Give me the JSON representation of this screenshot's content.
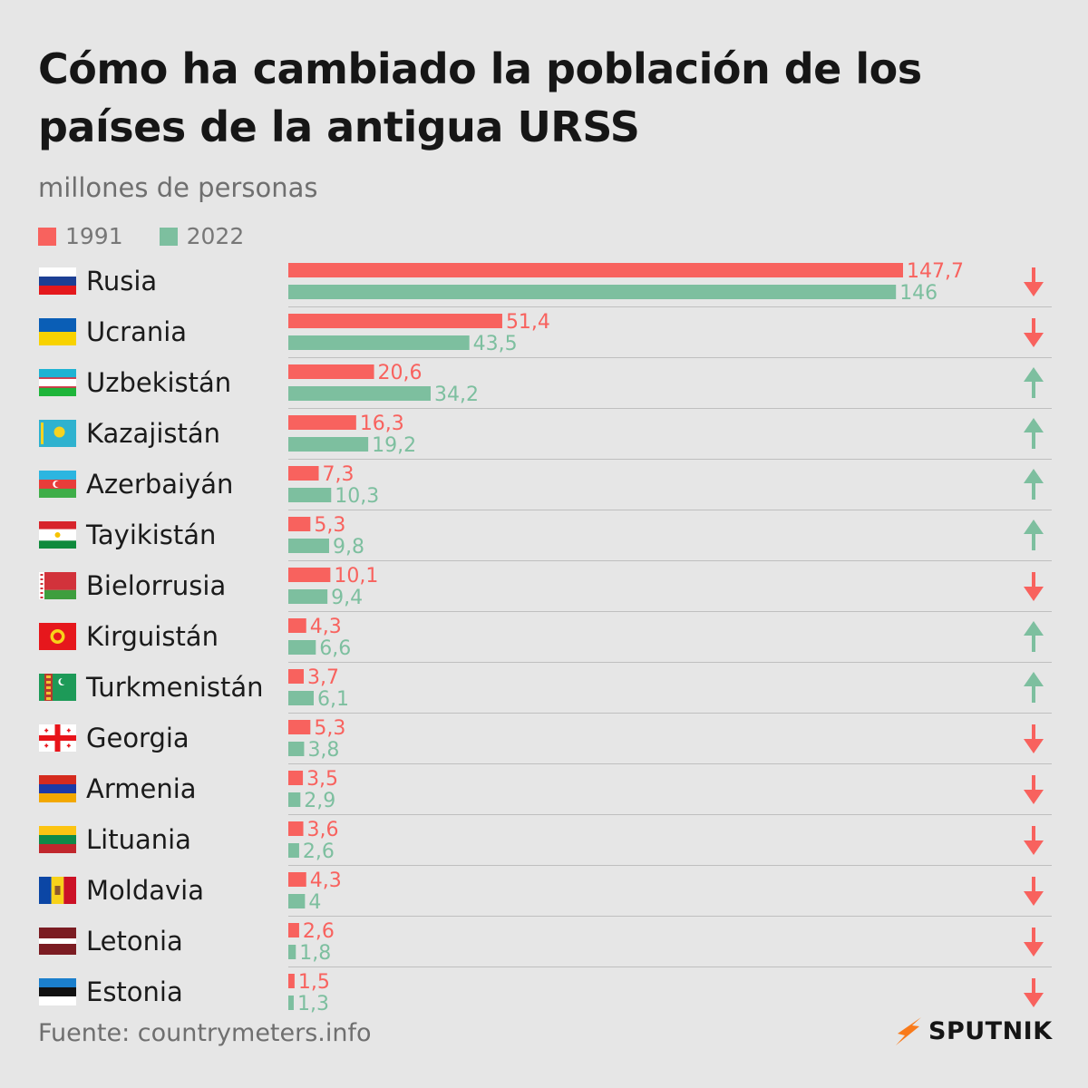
{
  "header": {
    "title": "Cómo ha cambiado la población de los países de la antigua URSS",
    "subtitle": "millones de personas"
  },
  "footer": {
    "source": "Fuente: countrymeters.info",
    "brand": "SPUTNIK"
  },
  "colors": {
    "series_1991": "#f8625e",
    "series_2022": "#7dbf9f",
    "down_arrow": "#f8625e",
    "up_arrow": "#7dbf9f",
    "brand_accent": "#f97a1a"
  },
  "chart_data": {
    "type": "bar",
    "orientation": "horizontal",
    "categories": [
      "Rusia",
      "Ucrania",
      "Uzbekistán",
      "Kazajistán",
      "Azerbaiyán",
      "Tayikistán",
      "Bielorrusia",
      "Kirguistán",
      "Turkmenistán",
      "Georgia",
      "Armenia",
      "Lituania",
      "Moldavia",
      "Letonia",
      "Estonia"
    ],
    "series": [
      {
        "name": "1991",
        "values": [
          147.7,
          51.4,
          20.6,
          16.3,
          7.3,
          5.3,
          10.1,
          4.3,
          3.7,
          5.3,
          3.5,
          3.6,
          4.3,
          2.6,
          1.5
        ],
        "labels": [
          "147,7",
          "51,4",
          "20,6",
          "16,3",
          "7,3",
          "5,3",
          "10,1",
          "4,3",
          "3,7",
          "5,3",
          "3,5",
          "3,6",
          "4,3",
          "2,6",
          "1,5"
        ]
      },
      {
        "name": "2022",
        "values": [
          146,
          43.5,
          34.2,
          19.2,
          10.3,
          9.8,
          9.4,
          6.6,
          6.1,
          3.8,
          2.9,
          2.6,
          4,
          1.8,
          1.3
        ],
        "labels": [
          "146",
          "43,5",
          "34,2",
          "19,2",
          "10,3",
          "9,8",
          "9,4",
          "6,6",
          "6,1",
          "3,8",
          "2,9",
          "2,6",
          "4",
          "1,8",
          "1,3"
        ]
      }
    ],
    "trend": [
      "down",
      "down",
      "up",
      "up",
      "up",
      "up",
      "down",
      "up",
      "up",
      "down",
      "down",
      "down",
      "down",
      "down",
      "down"
    ],
    "flag_icons": [
      "flag-russia-icon",
      "flag-ukraine-icon",
      "flag-uzbekistan-icon",
      "flag-kazakhstan-icon",
      "flag-azerbaijan-icon",
      "flag-tajikistan-icon",
      "flag-belarus-icon",
      "flag-kyrgyzstan-icon",
      "flag-turkmenistan-icon",
      "flag-georgia-icon",
      "flag-armenia-icon",
      "flag-lithuania-icon",
      "flag-moldova-icon",
      "flag-latvia-icon",
      "flag-estonia-icon"
    ],
    "xlim": [
      0,
      147.7
    ],
    "grid": false,
    "legend": "top-left"
  }
}
